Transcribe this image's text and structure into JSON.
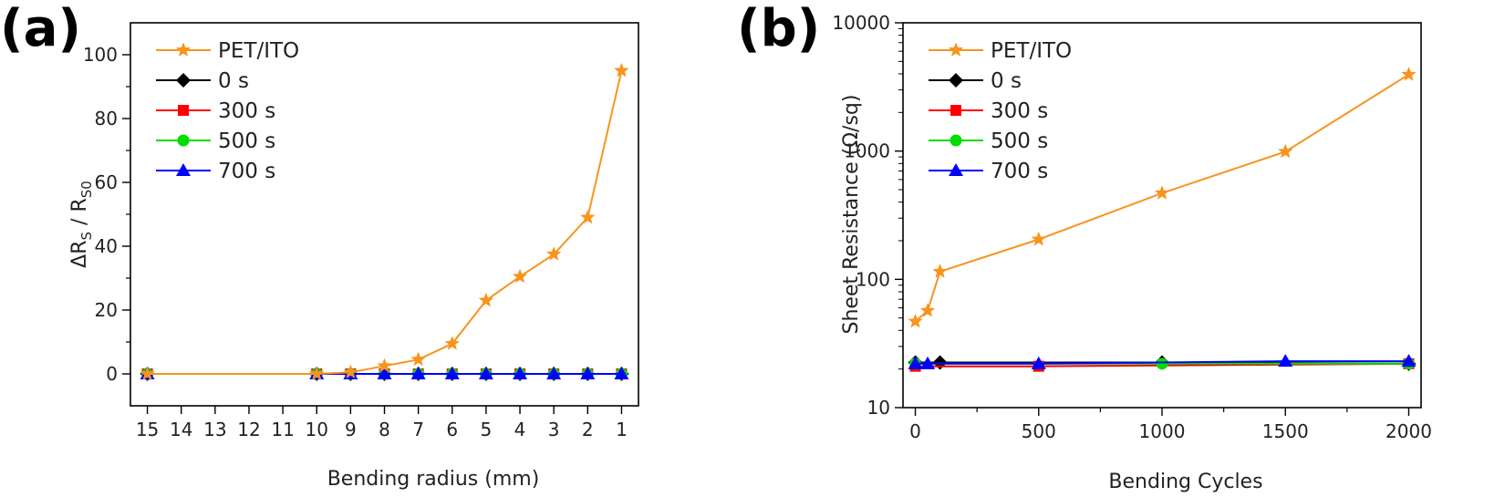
{
  "panels": [
    "(a)",
    "(b)"
  ],
  "chart_data": [
    {
      "type": "line",
      "xlabel": "Bending radius (mm)",
      "ylabel_main": "ΔR",
      "ylabel_sub1": "S",
      "ylabel_mid": " / R",
      "ylabel_sub2": "S0",
      "x_reversed": true,
      "xlim": [
        15.5,
        0.5
      ],
      "ylim": [
        -10,
        110
      ],
      "xticks": [
        15,
        14,
        13,
        12,
        11,
        10,
        9,
        8,
        7,
        6,
        5,
        4,
        3,
        2,
        1
      ],
      "yticks": [
        0,
        20,
        40,
        60,
        80,
        100
      ],
      "legend_position": "top-left",
      "series": [
        {
          "name": "PET/ITO",
          "color": "#F7941D",
          "marker": "star",
          "x": [
            15,
            10,
            9,
            8,
            7,
            6,
            5,
            4,
            3,
            2,
            1
          ],
          "y": [
            0,
            0,
            0.5,
            2.5,
            4.5,
            9.5,
            23,
            30.5,
            37.5,
            49,
            95
          ]
        },
        {
          "name": "0 s",
          "color": "#000000",
          "marker": "diamond",
          "x": [
            15,
            10,
            9,
            8,
            7,
            6,
            5,
            4,
            3,
            2,
            1
          ],
          "y": [
            0,
            0,
            0,
            0,
            0,
            0,
            0,
            0,
            0,
            0,
            0
          ]
        },
        {
          "name": "300 s",
          "color": "#FF0000",
          "marker": "square",
          "x": [
            15,
            10,
            9,
            8,
            7,
            6,
            5,
            4,
            3,
            2,
            1
          ],
          "y": [
            0,
            0,
            0,
            0,
            0,
            0,
            0,
            0,
            0,
            0,
            0
          ]
        },
        {
          "name": "500 s",
          "color": "#00DD00",
          "marker": "circle",
          "x": [
            15,
            10,
            9,
            8,
            7,
            6,
            5,
            4,
            3,
            2,
            1
          ],
          "y": [
            0,
            0,
            0,
            0,
            0,
            0,
            0,
            0,
            0,
            0,
            0
          ]
        },
        {
          "name": "700 s",
          "color": "#0000FF",
          "marker": "triangle",
          "x": [
            15,
            10,
            9,
            8,
            7,
            6,
            5,
            4,
            3,
            2,
            1
          ],
          "y": [
            0,
            0,
            0,
            0,
            0,
            0,
            0,
            0,
            0,
            0,
            0
          ]
        }
      ]
    },
    {
      "type": "line",
      "xlabel": "Bending Cycles",
      "ylabel": "Sheet Resistance (Ω/sq)",
      "y_scale": "log",
      "xlim": [
        -50,
        2050
      ],
      "ylim": [
        10,
        10000
      ],
      "xticks": [
        0,
        500,
        1000,
        1500,
        2000
      ],
      "yticks": [
        10,
        100,
        1000,
        10000
      ],
      "legend_position": "top-left",
      "series": [
        {
          "name": "PET/ITO",
          "color": "#F7941D",
          "marker": "star",
          "x": [
            0,
            50,
            100,
            500,
            1000,
            1500,
            2000
          ],
          "y": [
            47,
            57,
            115,
            205,
            470,
            990,
            3950
          ]
        },
        {
          "name": "0 s",
          "color": "#000000",
          "marker": "diamond",
          "x": [
            0,
            100,
            1000,
            2000
          ],
          "y": [
            22.5,
            22.5,
            22.5,
            22
          ]
        },
        {
          "name": "300 s",
          "color": "#FF0000",
          "marker": "square",
          "x": [
            0,
            500,
            2000
          ],
          "y": [
            21,
            21,
            22
          ]
        },
        {
          "name": "500 s",
          "color": "#00DD00",
          "marker": "circle",
          "x": [
            0,
            1000,
            2000
          ],
          "y": [
            22,
            22,
            22
          ]
        },
        {
          "name": "700 s",
          "color": "#0000FF",
          "marker": "triangle",
          "x": [
            0,
            50,
            500,
            1500,
            2000
          ],
          "y": [
            22,
            22,
            22,
            23,
            23
          ]
        }
      ]
    }
  ]
}
